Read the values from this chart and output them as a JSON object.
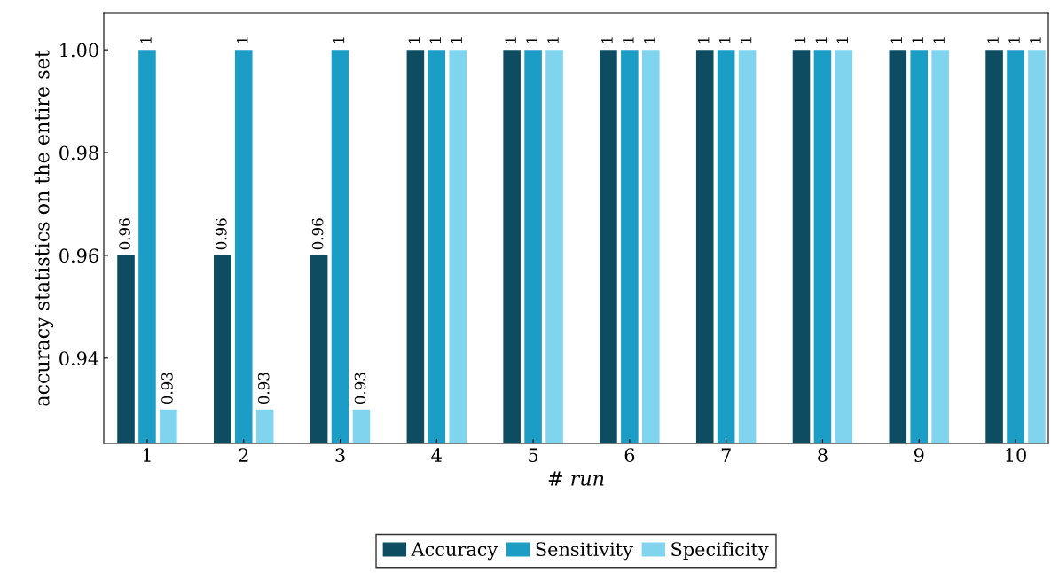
{
  "chart_data": {
    "type": "bar",
    "xlabel": "# run",
    "ylabel": "accuracy statistics on the entire set",
    "categories": [
      "1",
      "2",
      "3",
      "4",
      "5",
      "6",
      "7",
      "8",
      "9",
      "10"
    ],
    "series": [
      {
        "name": "Accuracy",
        "color": "#0e4d61",
        "values": [
          0.96,
          0.96,
          0.96,
          1,
          1,
          1,
          1,
          1,
          1,
          1
        ]
      },
      {
        "name": "Sensitivity",
        "color": "#1b9dc6",
        "values": [
          1,
          1,
          1,
          1,
          1,
          1,
          1,
          1,
          1,
          1
        ]
      },
      {
        "name": "Specificity",
        "color": "#80d4ee",
        "values": [
          0.93,
          0.93,
          0.93,
          1,
          1,
          1,
          1,
          1,
          1,
          1
        ]
      }
    ],
    "ylim": [
      0.9234,
      1.0071
    ],
    "yticks": [
      0.94,
      0.96,
      0.98,
      {
        "value": 1,
        "label": "1.00"
      }
    ],
    "data_labels": true,
    "grid": false,
    "legend": "bottom"
  }
}
